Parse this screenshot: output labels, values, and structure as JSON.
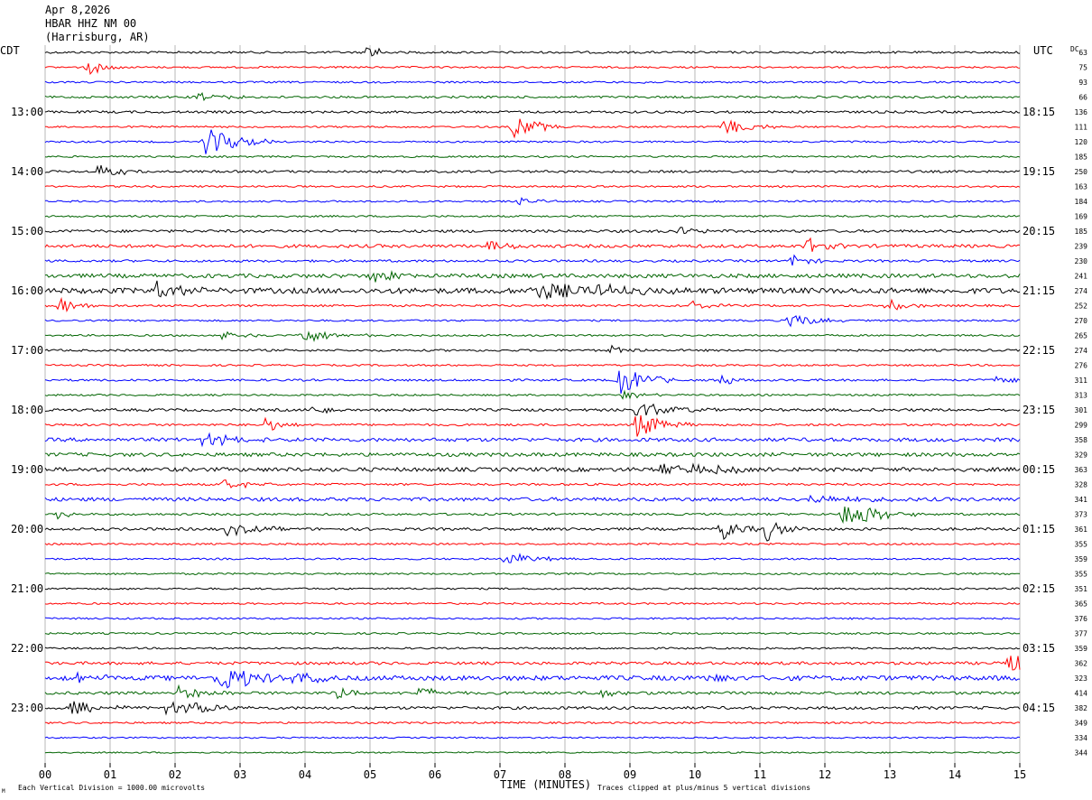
{
  "header": {
    "date": "Apr 8,2026",
    "station": "HBAR HHZ NM 00",
    "location": "(Harrisburg, AR)"
  },
  "left_zone": "CDT",
  "right_zone": "UTC",
  "dc_label": "DC",
  "footer": {
    "scale": "Each Vertical Division = 1000.00 microvolts",
    "xlabel": "TIME (MINUTES)",
    "clip": "Traces clipped at plus/minus 5 vertical divisions",
    "corner_mark": "M"
  },
  "colors": {
    "trace_cycle": [
      "#000000",
      "#ff0000",
      "#0000ff",
      "#006400"
    ],
    "grid": "#888888"
  },
  "chart_data": {
    "type": "line",
    "subtype": "helicorder",
    "xlabel": "TIME (MINUTES)",
    "xlim": [
      0,
      15
    ],
    "xticks": [
      "00",
      "01",
      "02",
      "03",
      "04",
      "05",
      "06",
      "07",
      "08",
      "09",
      "10",
      "11",
      "12",
      "13",
      "14",
      "15"
    ],
    "rows_per_hour": 4,
    "left_time_labels": [
      {
        "row": 4,
        "label": "13:00"
      },
      {
        "row": 8,
        "label": "14:00"
      },
      {
        "row": 12,
        "label": "15:00"
      },
      {
        "row": 16,
        "label": "16:00"
      },
      {
        "row": 20,
        "label": "17:00"
      },
      {
        "row": 24,
        "label": "18:00"
      },
      {
        "row": 28,
        "label": "19:00"
      },
      {
        "row": 32,
        "label": "20:00"
      },
      {
        "row": 36,
        "label": "21:00"
      },
      {
        "row": 40,
        "label": "22:00"
      },
      {
        "row": 44,
        "label": "23:00"
      }
    ],
    "right_time_labels": [
      {
        "row": 4,
        "label": "18:15"
      },
      {
        "row": 8,
        "label": "19:15"
      },
      {
        "row": 12,
        "label": "20:15"
      },
      {
        "row": 16,
        "label": "21:15"
      },
      {
        "row": 20,
        "label": "22:15"
      },
      {
        "row": 24,
        "label": "23:15"
      },
      {
        "row": 28,
        "label": "00:15"
      },
      {
        "row": 32,
        "label": "01:15"
      },
      {
        "row": 36,
        "label": "02:15"
      },
      {
        "row": 40,
        "label": "03:15"
      },
      {
        "row": 44,
        "label": "04:15"
      }
    ],
    "dc_offsets": [
      63,
      75,
      93,
      66,
      136,
      111,
      120,
      185,
      250,
      163,
      184,
      169,
      185,
      239,
      230,
      241,
      274,
      252,
      270,
      265,
      274,
      276,
      311,
      313,
      301,
      299,
      358,
      329,
      363,
      328,
      341,
      373,
      361,
      355,
      359,
      355,
      351,
      365,
      376,
      377,
      359,
      362,
      323,
      414,
      382,
      349,
      334,
      344
    ],
    "noise_levels": [
      1.2,
      1.0,
      1.0,
      1.2,
      1.3,
      1.0,
      1.0,
      1.0,
      1.3,
      1.0,
      1.0,
      1.0,
      1.5,
      1.8,
      1.3,
      2.2,
      3.0,
      1.2,
      1.0,
      1.0,
      1.2,
      1.0,
      1.2,
      1.0,
      1.5,
      1.2,
      2.0,
      2.0,
      2.2,
      1.2,
      2.0,
      1.2,
      1.5,
      1.0,
      1.0,
      1.0,
      1.0,
      1.0,
      1.0,
      1.0,
      1.0,
      1.6,
      2.6,
      1.6,
      1.6,
      1.0,
      0.8,
      0.8
    ],
    "events": [
      {
        "row": 0,
        "minute": 4.95,
        "amp": 14,
        "dur": 0.15
      },
      {
        "row": 1,
        "minute": 0.65,
        "amp": 9,
        "dur": 0.25
      },
      {
        "row": 2,
        "minute": 9.2,
        "amp": 10,
        "dur": 0.04
      },
      {
        "row": 3,
        "minute": 2.35,
        "amp": 6,
        "dur": 0.3
      },
      {
        "row": 5,
        "minute": 7.2,
        "amp": 14,
        "dur": 0.35
      },
      {
        "row": 5,
        "minute": 10.45,
        "amp": 9,
        "dur": 0.4
      },
      {
        "row": 6,
        "minute": 2.45,
        "amp": 18,
        "dur": 0.45
      },
      {
        "row": 8,
        "minute": 0.8,
        "amp": 8,
        "dur": 0.35
      },
      {
        "row": 10,
        "minute": 7.3,
        "amp": 6,
        "dur": 0.25
      },
      {
        "row": 12,
        "minute": 9.7,
        "amp": 6,
        "dur": 0.3
      },
      {
        "row": 13,
        "minute": 6.8,
        "amp": 6,
        "dur": 0.35
      },
      {
        "row": 13,
        "minute": 11.7,
        "amp": 10,
        "dur": 0.3
      },
      {
        "row": 14,
        "minute": 11.5,
        "amp": 7,
        "dur": 0.25
      },
      {
        "row": 15,
        "minute": 5.0,
        "amp": 7,
        "dur": 0.45
      },
      {
        "row": 16,
        "minute": 7.5,
        "amp": 12,
        "dur": 0.6
      },
      {
        "row": 16,
        "minute": 8.4,
        "amp": 9,
        "dur": 0.6
      },
      {
        "row": 16,
        "minute": 1.7,
        "amp": 9,
        "dur": 0.4
      },
      {
        "row": 17,
        "minute": 0.2,
        "amp": 10,
        "dur": 0.3
      },
      {
        "row": 17,
        "minute": 9.9,
        "amp": 6,
        "dur": 0.3
      },
      {
        "row": 17,
        "minute": 12.95,
        "amp": 8,
        "dur": 0.25
      },
      {
        "row": 18,
        "minute": 11.45,
        "amp": 10,
        "dur": 0.35
      },
      {
        "row": 19,
        "minute": 2.7,
        "amp": 6,
        "dur": 0.4
      },
      {
        "row": 19,
        "minute": 3.95,
        "amp": 9,
        "dur": 0.45
      },
      {
        "row": 20,
        "minute": 8.7,
        "amp": 5,
        "dur": 0.3
      },
      {
        "row": 22,
        "minute": 8.85,
        "amp": 18,
        "dur": 0.35
      },
      {
        "row": 22,
        "minute": 10.4,
        "amp": 6,
        "dur": 0.2
      },
      {
        "row": 22,
        "minute": 14.6,
        "amp": 6,
        "dur": 0.3
      },
      {
        "row": 23,
        "minute": 8.9,
        "amp": 6,
        "dur": 0.25
      },
      {
        "row": 24,
        "minute": 9.1,
        "amp": 10,
        "dur": 0.5
      },
      {
        "row": 24,
        "minute": 4.1,
        "amp": 6,
        "dur": 0.3
      },
      {
        "row": 25,
        "minute": 3.4,
        "amp": 10,
        "dur": 0.2
      },
      {
        "row": 25,
        "minute": 9.1,
        "amp": 16,
        "dur": 0.35
      },
      {
        "row": 26,
        "minute": 2.4,
        "amp": 8,
        "dur": 0.5
      },
      {
        "row": 28,
        "minute": 9.5,
        "amp": 8,
        "dur": 1.0
      },
      {
        "row": 29,
        "minute": 2.75,
        "amp": 6,
        "dur": 0.35
      },
      {
        "row": 30,
        "minute": 11.6,
        "amp": 6,
        "dur": 0.6
      },
      {
        "row": 31,
        "minute": 12.25,
        "amp": 18,
        "dur": 0.5
      },
      {
        "row": 31,
        "minute": 0.2,
        "amp": 8,
        "dur": 0.15
      },
      {
        "row": 32,
        "minute": 2.8,
        "amp": 7,
        "dur": 0.45
      },
      {
        "row": 32,
        "minute": 10.4,
        "amp": 14,
        "dur": 0.25
      },
      {
        "row": 32,
        "minute": 11.1,
        "amp": 14,
        "dur": 0.25
      },
      {
        "row": 34,
        "minute": 7.05,
        "amp": 8,
        "dur": 0.45
      },
      {
        "row": 41,
        "minute": 14.8,
        "amp": 13,
        "dur": 0.5
      },
      {
        "row": 42,
        "minute": 2.65,
        "amp": 17,
        "dur": 0.5
      },
      {
        "row": 42,
        "minute": 0.5,
        "amp": 7,
        "dur": 0.4
      },
      {
        "row": 42,
        "minute": 3.8,
        "amp": 7,
        "dur": 0.4
      },
      {
        "row": 42,
        "minute": 10.1,
        "amp": 8,
        "dur": 0.25
      },
      {
        "row": 43,
        "minute": 4.5,
        "amp": 8,
        "dur": 0.3
      },
      {
        "row": 43,
        "minute": 5.75,
        "amp": 7,
        "dur": 0.3
      },
      {
        "row": 43,
        "minute": 2.05,
        "amp": 8,
        "dur": 0.4
      },
      {
        "row": 43,
        "minute": 8.55,
        "amp": 6,
        "dur": 0.3
      },
      {
        "row": 44,
        "minute": 0.4,
        "amp": 8,
        "dur": 0.5
      },
      {
        "row": 44,
        "minute": 1.85,
        "amp": 8,
        "dur": 0.4
      },
      {
        "row": 44,
        "minute": 2.3,
        "amp": 7,
        "dur": 0.35
      }
    ]
  }
}
